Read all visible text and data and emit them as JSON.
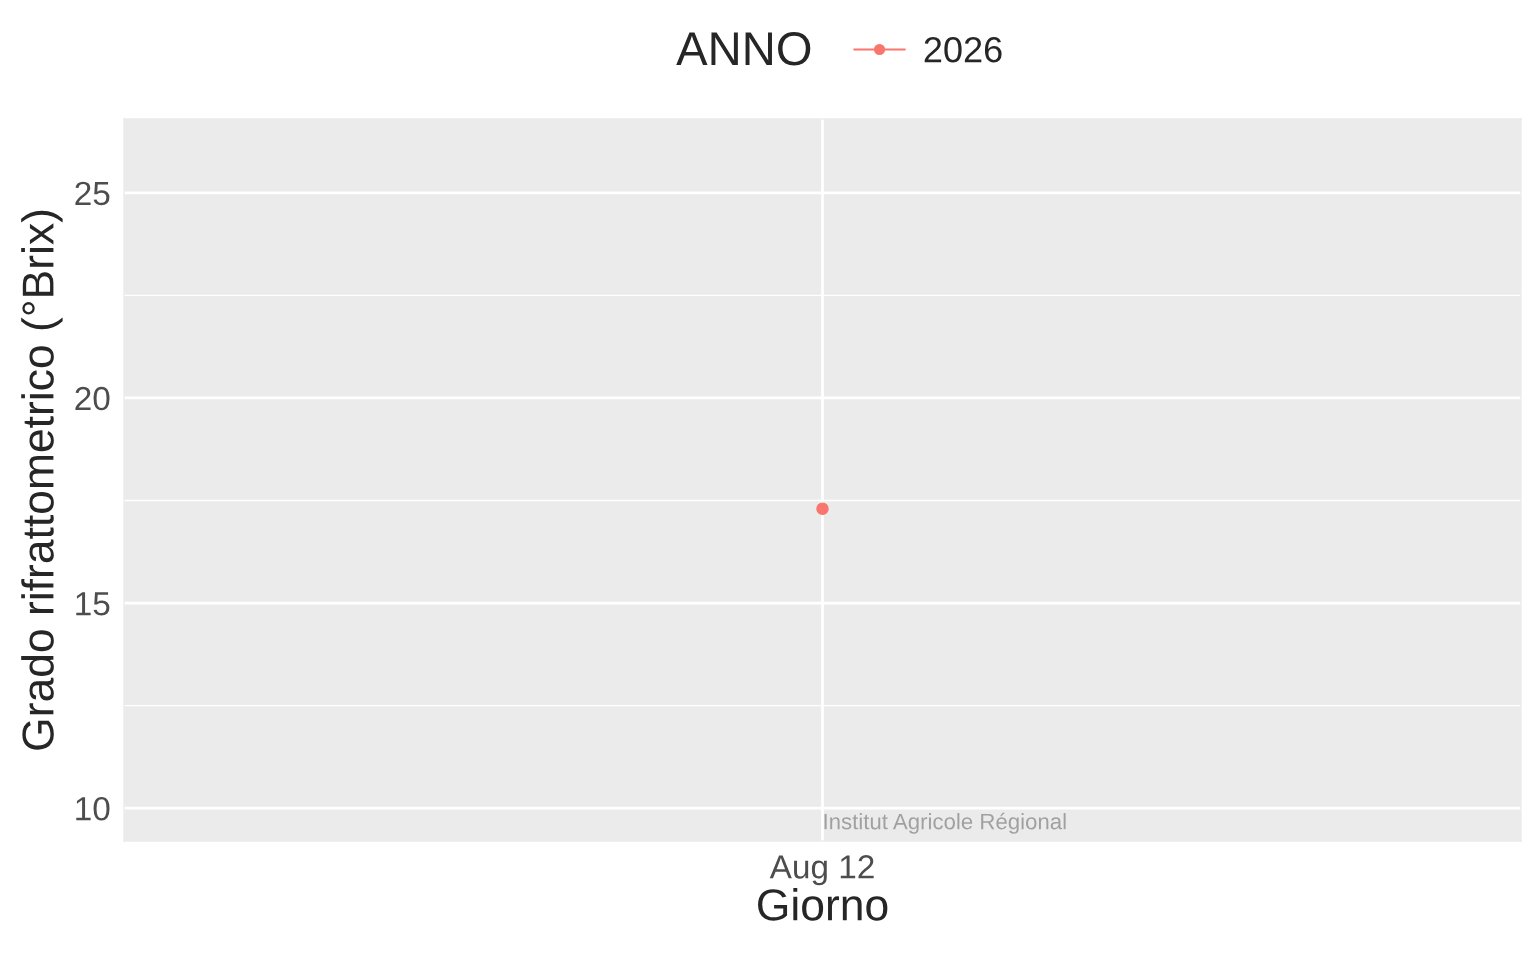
{
  "chart_data": {
    "type": "line",
    "xlabel": "Giorno",
    "ylabel": "Grado rifrattometrico (°Brix)",
    "legend_title": "ANNO",
    "categories": [
      "Aug 12"
    ],
    "series": [
      {
        "name": "2026",
        "color": "#f8766d",
        "values": [
          17.3
        ]
      }
    ],
    "ylim": [
      9.2,
      26.8
    ],
    "yticks": [
      10,
      {
        "value": 12.5,
        "label": null
      },
      15,
      {
        "value": 17.5,
        "label": null
      },
      20,
      {
        "value": 22.5,
        "label": null
      },
      25
    ],
    "grid": true,
    "legend": "top",
    "marker": "circle",
    "line_style": "solid",
    "annotations": [
      "Institut Agricole Régional"
    ]
  }
}
